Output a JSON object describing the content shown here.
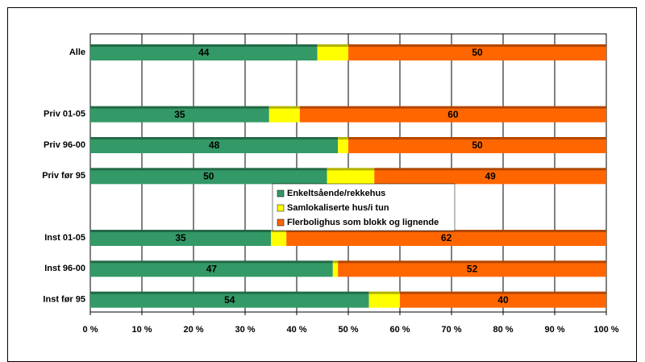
{
  "chart_data": {
    "type": "percent_stacked_bar",
    "orientation": "horizontal",
    "categories": [
      "Alle",
      null,
      "Priv 01-05",
      "Priv 96-00",
      "Priv før 95",
      null,
      "Inst 01-05",
      "Inst 96-00",
      "Inst før 95"
    ],
    "series": [
      {
        "name": "Enkeltsående/rekkehus",
        "color": "#339966",
        "values": [
          44,
          null,
          35,
          48,
          50,
          null,
          35,
          47,
          54
        ],
        "labeled": true
      },
      {
        "name": "Samlokaliserte hus/i tun",
        "color": "#ffff00",
        "values": [
          6,
          null,
          6,
          2,
          10,
          null,
          3,
          1,
          6
        ],
        "labeled": false
      },
      {
        "name": "Flerbolighus som blokk og lignende",
        "color": "#ff6600",
        "values": [
          50,
          null,
          60,
          50,
          49,
          null,
          62,
          52,
          40
        ],
        "labeled": true
      }
    ],
    "xlim": [
      0,
      100
    ],
    "xticks": [
      {
        "value": 0,
        "label": "0 %"
      },
      {
        "value": 10,
        "label": "10 %"
      },
      {
        "value": 20,
        "label": "20 %"
      },
      {
        "value": 30,
        "label": "30 %"
      },
      {
        "value": 40,
        "label": "40 %"
      },
      {
        "value": 50,
        "label": "50 %"
      },
      {
        "value": 60,
        "label": "60 %"
      },
      {
        "value": 70,
        "label": "70 %"
      },
      {
        "value": 80,
        "label": "80 %"
      },
      {
        "value": 90,
        "label": "90 %"
      },
      {
        "value": 100,
        "label": "100 %"
      }
    ],
    "grid": true
  }
}
